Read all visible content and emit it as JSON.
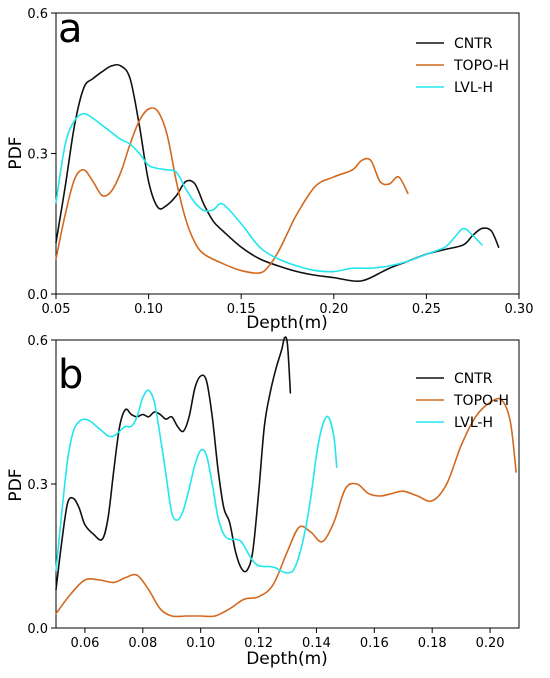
{
  "colors": {
    "CNTR": "#111111",
    "TOPO-H": "#d2691e",
    "LVL-H": "#22e6ee"
  },
  "chart_data": [
    {
      "type": "line",
      "panel_label": "a",
      "xlabel": "Depth(m)",
      "ylabel": "PDF",
      "xlim": [
        0.05,
        0.3
      ],
      "ylim": [
        0.0,
        0.6
      ],
      "xticks": [
        0.05,
        0.1,
        0.15,
        0.2,
        0.25,
        0.3
      ],
      "xtick_labels": [
        "0.05",
        "0.10",
        "0.15",
        "0.20",
        "0.25",
        "0.30"
      ],
      "yticks": [
        0.0,
        0.3,
        0.6
      ],
      "ytick_labels": [
        "0.0",
        "0.3",
        "0.6"
      ],
      "legend_position": "top-right",
      "series": [
        {
          "name": "CNTR",
          "color": "#111111",
          "x": [
            0.05,
            0.055,
            0.06,
            0.065,
            0.07,
            0.075,
            0.08,
            0.085,
            0.09,
            0.095,
            0.1,
            0.105,
            0.11,
            0.115,
            0.12,
            0.125,
            0.13,
            0.135,
            0.14,
            0.15,
            0.16,
            0.17,
            0.18,
            0.19,
            0.2,
            0.21,
            0.215,
            0.22,
            0.23,
            0.24,
            0.25,
            0.26,
            0.27,
            0.275,
            0.28,
            0.285,
            0.289
          ],
          "y": [
            0.11,
            0.23,
            0.36,
            0.44,
            0.46,
            0.475,
            0.487,
            0.487,
            0.46,
            0.36,
            0.24,
            0.185,
            0.19,
            0.21,
            0.24,
            0.235,
            0.19,
            0.155,
            0.135,
            0.1,
            0.075,
            0.06,
            0.048,
            0.04,
            0.035,
            0.028,
            0.028,
            0.035,
            0.055,
            0.07,
            0.085,
            0.095,
            0.105,
            0.125,
            0.14,
            0.135,
            0.1
          ]
        },
        {
          "name": "TOPO-H",
          "color": "#d2691e",
          "x": [
            0.05,
            0.055,
            0.06,
            0.065,
            0.07,
            0.075,
            0.08,
            0.085,
            0.09,
            0.095,
            0.1,
            0.105,
            0.11,
            0.115,
            0.12,
            0.125,
            0.13,
            0.14,
            0.15,
            0.16,
            0.165,
            0.17,
            0.175,
            0.18,
            0.19,
            0.2,
            0.21,
            0.215,
            0.22,
            0.225,
            0.23,
            0.235,
            0.24
          ],
          "y": [
            0.075,
            0.17,
            0.245,
            0.265,
            0.24,
            0.21,
            0.22,
            0.26,
            0.32,
            0.37,
            0.395,
            0.39,
            0.34,
            0.24,
            0.16,
            0.11,
            0.085,
            0.065,
            0.05,
            0.045,
            0.06,
            0.09,
            0.13,
            0.17,
            0.23,
            0.25,
            0.265,
            0.285,
            0.285,
            0.24,
            0.235,
            0.25,
            0.215
          ]
        },
        {
          "name": "LVL-H",
          "color": "#22e6ee",
          "x": [
            0.05,
            0.055,
            0.06,
            0.065,
            0.07,
            0.075,
            0.08,
            0.085,
            0.09,
            0.095,
            0.1,
            0.105,
            0.11,
            0.115,
            0.12,
            0.125,
            0.13,
            0.135,
            0.14,
            0.15,
            0.16,
            0.17,
            0.18,
            0.19,
            0.2,
            0.21,
            0.22,
            0.23,
            0.24,
            0.25,
            0.26,
            0.265,
            0.27,
            0.275,
            0.28
          ],
          "y": [
            0.195,
            0.32,
            0.37,
            0.385,
            0.375,
            0.36,
            0.345,
            0.33,
            0.32,
            0.3,
            0.275,
            0.268,
            0.265,
            0.26,
            0.225,
            0.195,
            0.178,
            0.18,
            0.192,
            0.15,
            0.1,
            0.075,
            0.06,
            0.05,
            0.048,
            0.055,
            0.055,
            0.06,
            0.07,
            0.085,
            0.1,
            0.12,
            0.14,
            0.125,
            0.105
          ]
        }
      ]
    },
    {
      "type": "line",
      "panel_label": "b",
      "xlabel": "Depth(m)",
      "ylabel": "PDF",
      "xlim": [
        0.05,
        0.21
      ],
      "ylim": [
        0.0,
        0.6
      ],
      "xticks": [
        0.06,
        0.08,
        0.1,
        0.12,
        0.14,
        0.16,
        0.18,
        0.2
      ],
      "xtick_labels": [
        "0.06",
        "0.08",
        "0.10",
        "0.12",
        "0.14",
        "0.16",
        "0.18",
        "0.20"
      ],
      "yticks": [
        0.0,
        0.3,
        0.6
      ],
      "ytick_labels": [
        "0.0",
        "0.3",
        "0.6"
      ],
      "legend_position": "top-right",
      "series": [
        {
          "name": "CNTR",
          "color": "#111111",
          "x": [
            0.05,
            0.052,
            0.054,
            0.056,
            0.058,
            0.06,
            0.063,
            0.066,
            0.068,
            0.07,
            0.072,
            0.074,
            0.076,
            0.078,
            0.08,
            0.082,
            0.084,
            0.086,
            0.088,
            0.09,
            0.092,
            0.094,
            0.096,
            0.098,
            0.1,
            0.102,
            0.104,
            0.106,
            0.108,
            0.11,
            0.112,
            0.114,
            0.116,
            0.118,
            0.12,
            0.122,
            0.124,
            0.126,
            0.128,
            0.129,
            0.13,
            0.131
          ],
          "y": [
            0.08,
            0.18,
            0.26,
            0.27,
            0.25,
            0.215,
            0.195,
            0.185,
            0.23,
            0.33,
            0.42,
            0.455,
            0.445,
            0.44,
            0.445,
            0.44,
            0.45,
            0.445,
            0.435,
            0.44,
            0.42,
            0.41,
            0.44,
            0.5,
            0.525,
            0.515,
            0.44,
            0.33,
            0.25,
            0.22,
            0.16,
            0.125,
            0.12,
            0.16,
            0.28,
            0.42,
            0.49,
            0.54,
            0.58,
            0.605,
            0.59,
            0.49
          ]
        },
        {
          "name": "TOPO-H",
          "color": "#d2691e",
          "x": [
            0.05,
            0.055,
            0.06,
            0.065,
            0.07,
            0.074,
            0.078,
            0.082,
            0.086,
            0.09,
            0.095,
            0.1,
            0.105,
            0.11,
            0.115,
            0.12,
            0.125,
            0.13,
            0.134,
            0.138,
            0.142,
            0.146,
            0.15,
            0.154,
            0.158,
            0.162,
            0.166,
            0.17,
            0.175,
            0.18,
            0.185,
            0.19,
            0.195,
            0.2,
            0.204,
            0.207,
            0.209
          ],
          "y": [
            0.03,
            0.07,
            0.1,
            0.1,
            0.095,
            0.105,
            0.11,
            0.08,
            0.04,
            0.025,
            0.025,
            0.025,
            0.025,
            0.04,
            0.06,
            0.065,
            0.09,
            0.16,
            0.21,
            0.2,
            0.18,
            0.22,
            0.29,
            0.3,
            0.28,
            0.275,
            0.28,
            0.285,
            0.275,
            0.265,
            0.3,
            0.38,
            0.44,
            0.47,
            0.475,
            0.43,
            0.325
          ]
        },
        {
          "name": "LVL-H",
          "color": "#22e6ee",
          "x": [
            0.05,
            0.052,
            0.054,
            0.056,
            0.058,
            0.06,
            0.062,
            0.064,
            0.066,
            0.068,
            0.07,
            0.072,
            0.074,
            0.076,
            0.078,
            0.08,
            0.082,
            0.084,
            0.086,
            0.088,
            0.09,
            0.092,
            0.094,
            0.096,
            0.098,
            0.1,
            0.102,
            0.104,
            0.106,
            0.108,
            0.11,
            0.112,
            0.114,
            0.116,
            0.118,
            0.12,
            0.122,
            0.124,
            0.126,
            0.128,
            0.13,
            0.132,
            0.134,
            0.136,
            0.138,
            0.14,
            0.142,
            0.144,
            0.146,
            0.147
          ],
          "y": [
            0.12,
            0.24,
            0.35,
            0.41,
            0.43,
            0.435,
            0.43,
            0.42,
            0.41,
            0.4,
            0.4,
            0.41,
            0.42,
            0.42,
            0.44,
            0.48,
            0.495,
            0.47,
            0.4,
            0.32,
            0.24,
            0.225,
            0.245,
            0.29,
            0.34,
            0.37,
            0.36,
            0.3,
            0.23,
            0.195,
            0.185,
            0.185,
            0.18,
            0.16,
            0.14,
            0.13,
            0.128,
            0.128,
            0.125,
            0.118,
            0.115,
            0.12,
            0.15,
            0.2,
            0.27,
            0.36,
            0.42,
            0.44,
            0.4,
            0.335
          ]
        }
      ]
    }
  ]
}
